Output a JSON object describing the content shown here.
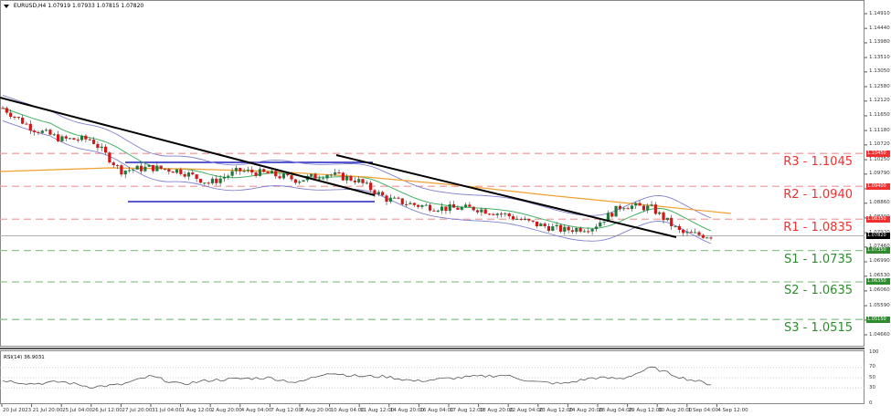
{
  "header": {
    "symbol": "EURUSD,H4",
    "ohlc": "1.07919 1.07933 1.07815 1.07820",
    "title_full": "EURUSD,H4  1.07919 1.07933 1.07815 1.07820"
  },
  "price_axis": {
    "ticks": [
      "1.14910",
      "1.14440",
      "1.13980",
      "1.13510",
      "1.13050",
      "1.12580",
      "1.12120",
      "1.11650",
      "1.11180",
      "1.10720",
      "1.10250",
      "1.09790",
      "1.09320",
      "1.08860",
      "1.08390",
      "1.07920",
      "1.07460",
      "1.06990",
      "1.06530",
      "1.06060",
      "1.05590",
      "1.05130",
      "1.04660"
    ]
  },
  "levels": [
    {
      "id": "R3",
      "label": "R3 - 1.1045",
      "price": 1.1045,
      "tag": "1.10450",
      "color": "#f03030",
      "line": "#f4a0a0"
    },
    {
      "id": "R2",
      "label": "R2 - 1.0940",
      "price": 1.094,
      "tag": "1.09400",
      "color": "#f03030",
      "line": "#f4a0a0"
    },
    {
      "id": "R1",
      "label": "R1 - 1.0835",
      "price": 1.0835,
      "tag": "1.08350",
      "color": "#f03030",
      "line": "#f4a0a0"
    },
    {
      "id": "S1",
      "label": "S1 - 1.0735",
      "price": 1.0735,
      "tag": "1.07350",
      "color": "#2e8b2e",
      "line": "#8cc88c"
    },
    {
      "id": "S2",
      "label": "S2 - 1.0635",
      "price": 1.0635,
      "tag": "1.06350",
      "color": "#2e8b2e",
      "line": "#8cc88c"
    },
    {
      "id": "S3",
      "label": "S3 - 1.0515",
      "price": 1.0515,
      "tag": "1.05150",
      "color": "#2e8b2e",
      "line": "#8cc88c"
    }
  ],
  "current_price": {
    "value": "1.07820",
    "color": "#000000"
  },
  "rsi": {
    "title": "RSI(14) 36.9031",
    "levels": [
      "100",
      "70",
      "50",
      "30",
      "0"
    ]
  },
  "time_axis": {
    "labels": [
      "20 Jul 2023",
      "21 Jul 20:00",
      "25 Jul 04:00",
      "26 Jul 12:00",
      "27 Jul 20:00",
      "31 Jul 04:00",
      "1 Aug 12:00",
      "2 Aug 20:00",
      "4 Aug 04:00",
      "7 Aug 12:00",
      "8 Aug 20:00",
      "10 Aug 04:00",
      "11 Aug 12:00",
      "14 Aug 20:00",
      "16 Aug 04:00",
      "17 Aug 12:00",
      "18 Aug 20:00",
      "22 Aug 04:00",
      "23 Aug 12:00",
      "24 Aug 20:00",
      "28 Aug 04:00",
      "29 Aug 12:00",
      "30 Aug 20:00",
      "1 Sep 04:00",
      "4 Sep 12:00"
    ]
  },
  "colors": {
    "bull": "#1e7b3c",
    "bear": "#d01818",
    "bollinger": "#8080d0",
    "ma_green": "#40b060",
    "ma_orange": "#f0a030",
    "trendline": "#000000",
    "range_line": "#2020c0"
  },
  "chart_data": {
    "type": "candlestick",
    "title": "EURUSD,H4",
    "subtitle": "1.07919 1.07933 1.07815 1.07820",
    "xlabel": "",
    "ylabel": "",
    "ylim": [
      1.0466,
      1.1491
    ],
    "x": [
      "20 Jul 2023",
      "21 Jul 20:00",
      "25 Jul 04:00",
      "26 Jul 12:00",
      "27 Jul 20:00",
      "31 Jul 04:00",
      "1 Aug 12:00",
      "2 Aug 20:00",
      "4 Aug 04:00",
      "7 Aug 12:00",
      "8 Aug 20:00",
      "10 Aug 04:00",
      "11 Aug 12:00",
      "14 Aug 20:00",
      "16 Aug 04:00",
      "17 Aug 12:00",
      "18 Aug 20:00",
      "22 Aug 04:00",
      "23 Aug 12:00",
      "24 Aug 20:00",
      "28 Aug 04:00",
      "29 Aug 12:00",
      "30 Aug 20:00",
      "1 Sep 04:00",
      "4 Sep 12:00"
    ],
    "series": [
      {
        "name": "EURUSD close (approx.)",
        "values": [
          1.119,
          1.1125,
          1.109,
          1.109,
          1.099,
          1.1,
          1.099,
          1.095,
          1.099,
          1.098,
          1.096,
          1.098,
          1.096,
          1.09,
          1.088,
          1.087,
          1.087,
          1.085,
          1.082,
          1.08,
          1.081,
          1.088,
          1.087,
          1.079,
          1.0782
        ]
      },
      {
        "name": "RSI(14) (approx.)",
        "values": [
          45,
          38,
          42,
          32,
          36,
          53,
          37,
          45,
          48,
          50,
          40,
          60,
          53,
          52,
          43,
          48,
          52,
          55,
          42,
          38,
          50,
          48,
          70,
          50,
          37
        ]
      }
    ],
    "horizontal_levels": [
      {
        "name": "R3",
        "value": 1.1045
      },
      {
        "name": "R2",
        "value": 1.094
      },
      {
        "name": "R1",
        "value": 1.0835
      },
      {
        "name": "S1",
        "value": 1.0735
      },
      {
        "name": "S2",
        "value": 1.0635
      },
      {
        "name": "S3",
        "value": 1.0515
      }
    ],
    "indicators": [
      "Bollinger Bands",
      "Moving Average (green)",
      "Moving Average (orange)",
      "RSI(14)"
    ],
    "rsi_levels": [
      70,
      50,
      30
    ],
    "grid": false,
    "legend": "none"
  }
}
